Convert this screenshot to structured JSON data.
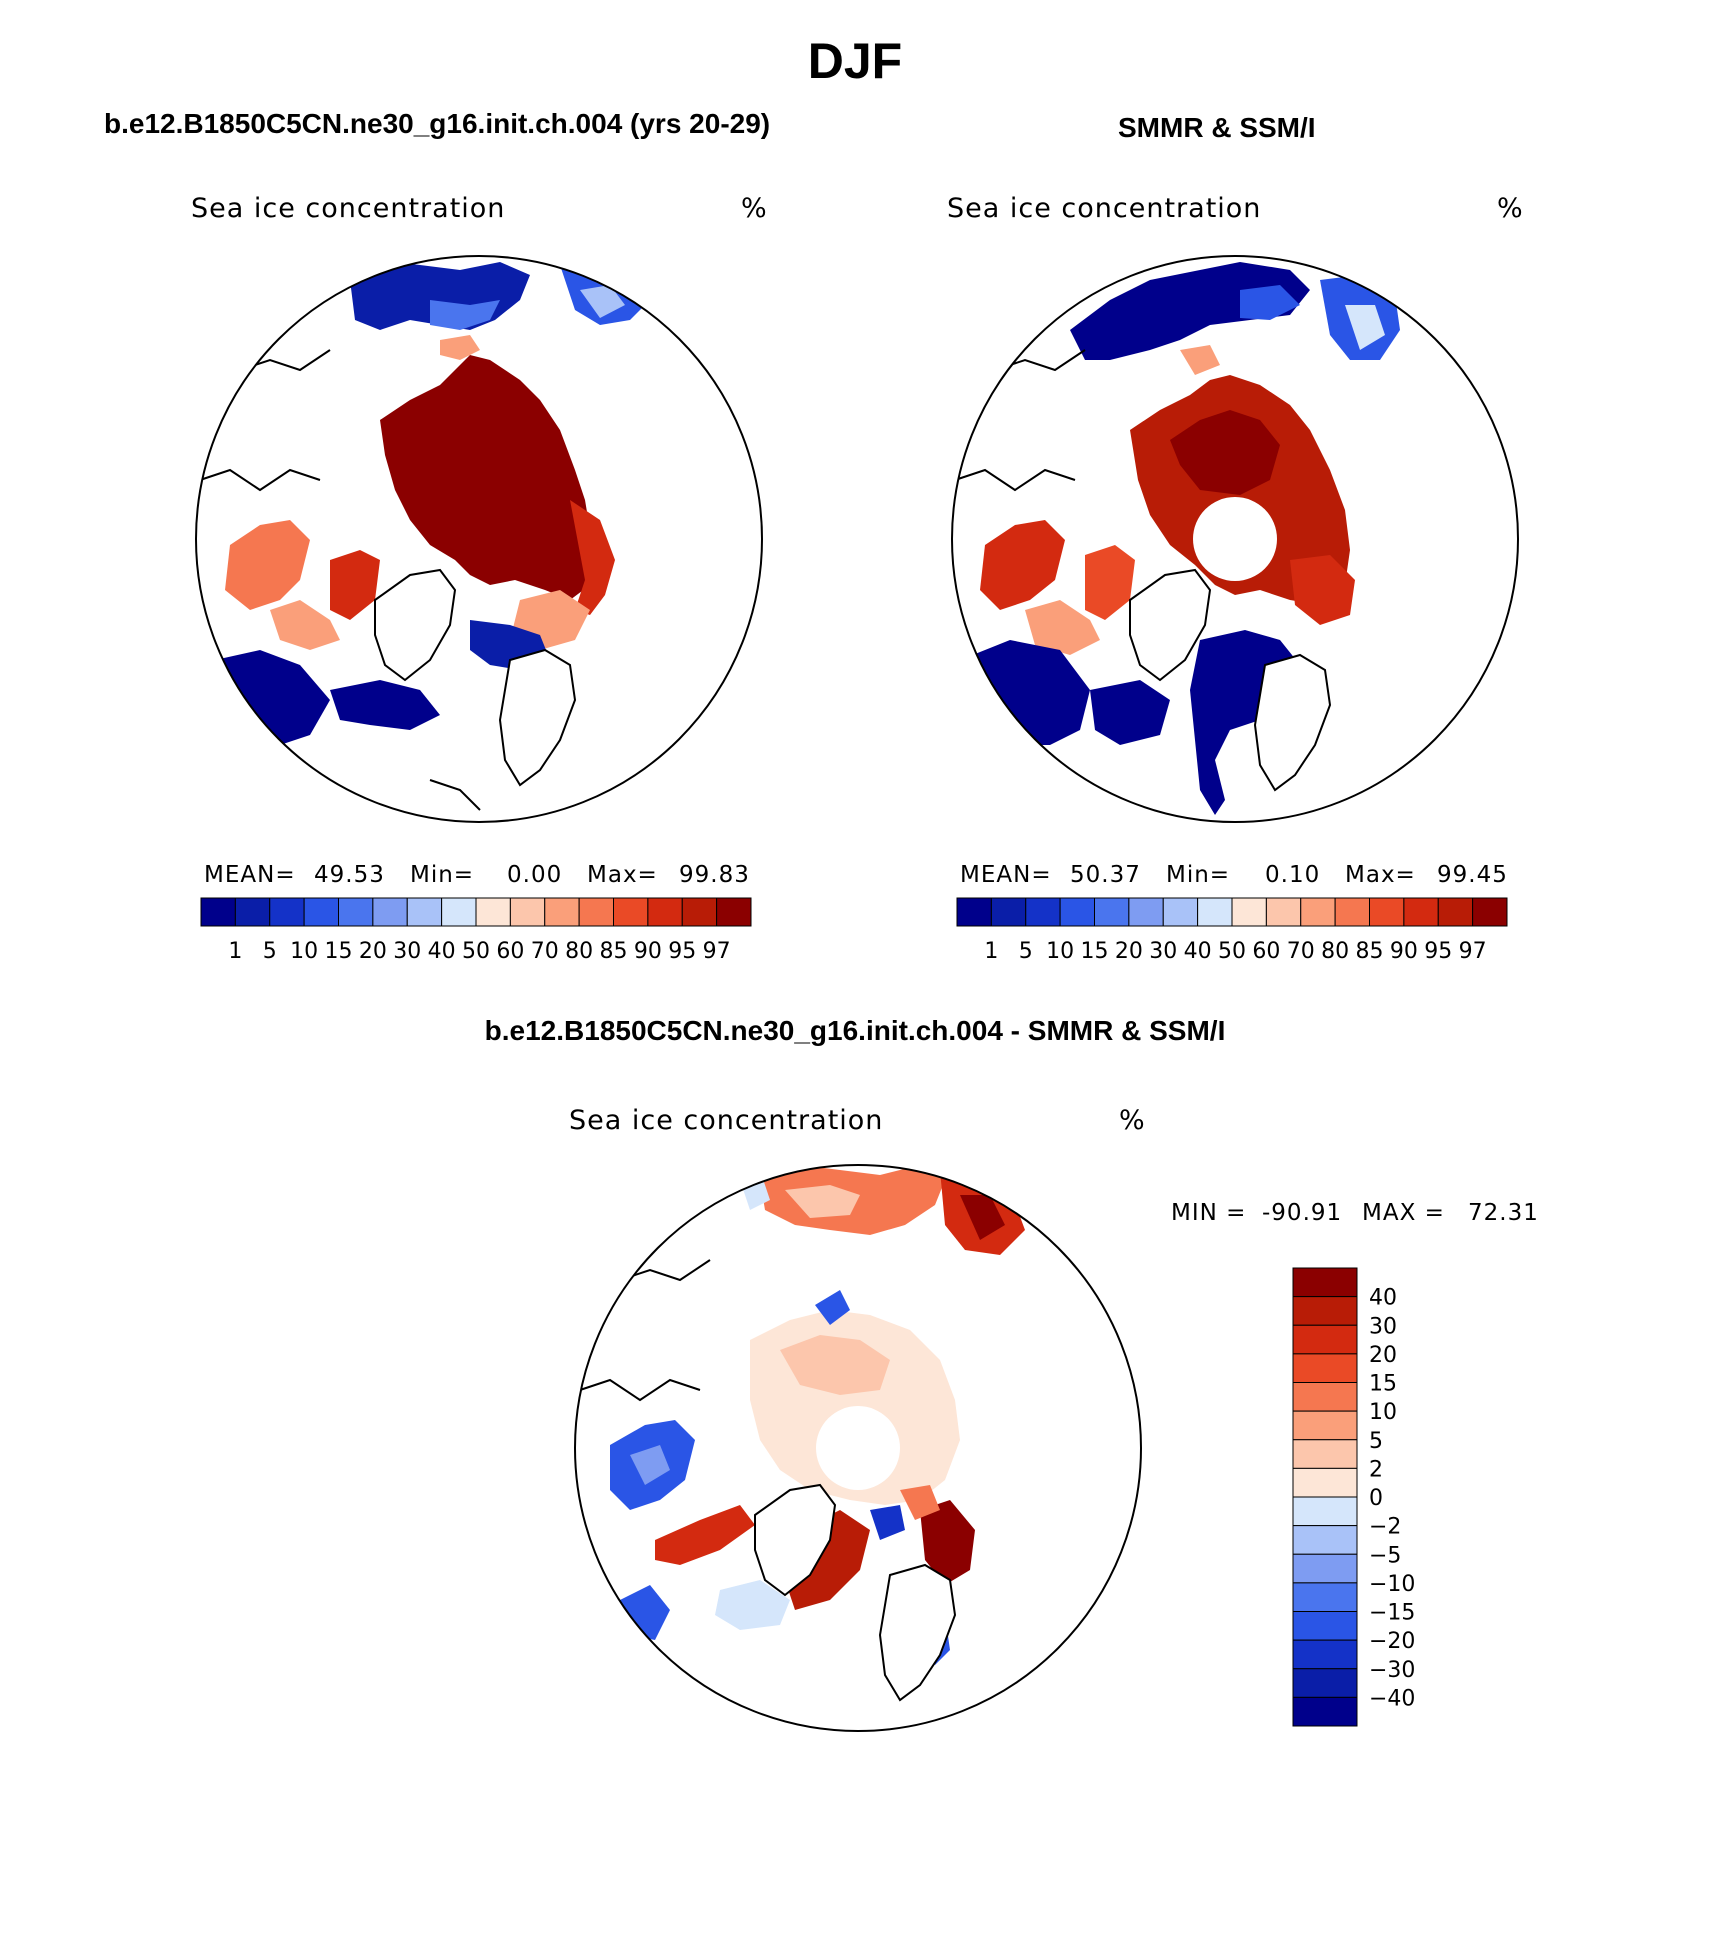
{
  "title": "DJF",
  "panels": {
    "model": {
      "title": "b.e12.B1850C5CN.ne30_g16.init.ch.004 (yrs 20-29)",
      "variable": "Sea ice concentration",
      "units": "%",
      "stats": {
        "mean_label": "MEAN=",
        "mean": "49.53",
        "min_label": "Min=",
        "min": "0.00",
        "max_label": "Max=",
        "max": "99.83"
      }
    },
    "obs": {
      "title": "SMMR & SSM/I",
      "variable": "Sea ice concentration",
      "units": "%",
      "stats": {
        "mean_label": "MEAN=",
        "mean": "50.37",
        "min_label": "Min=",
        "min": "0.10",
        "max_label": "Max=",
        "max": "99.45"
      }
    },
    "diff": {
      "title": "b.e12.B1850C5CN.ne30_g16.init.ch.004 - SMMR & SSM/I",
      "variable": "Sea ice concentration",
      "units": "%",
      "stats": {
        "min_label": "MIN =",
        "min": "-90.91",
        "max_label": "MAX =",
        "max": "72.31"
      }
    }
  },
  "colorbar_concentration": {
    "levels": [
      "1",
      "5",
      "10",
      "15",
      "20",
      "30",
      "40",
      "50",
      "60",
      "70",
      "80",
      "85",
      "90",
      "95",
      "97"
    ],
    "colors": [
      "#00008b",
      "#0a1ea8",
      "#1432c8",
      "#2a55e6",
      "#4a75ee",
      "#7e9cf2",
      "#a9c2f8",
      "#d5e6fb",
      "#fde6d7",
      "#fcc6ac",
      "#fa9f7a",
      "#f57750",
      "#ea4a26",
      "#d32a10",
      "#b81c06",
      "#8b0000"
    ]
  },
  "colorbar_difference": {
    "levels": [
      "40",
      "30",
      "20",
      "15",
      "10",
      "5",
      "2",
      "0",
      "−2",
      "−5",
      "−10",
      "−15",
      "−20",
      "−30",
      "−40"
    ],
    "colors": [
      "#8b0000",
      "#b81c06",
      "#d32a10",
      "#ea4a26",
      "#f57750",
      "#fa9f7a",
      "#fcc6ac",
      "#fde6d7",
      "#d5e6fb",
      "#a9c2f8",
      "#7e9cf2",
      "#4a75ee",
      "#2a55e6",
      "#1432c8",
      "#0a1ea8",
      "#00008b"
    ]
  }
}
